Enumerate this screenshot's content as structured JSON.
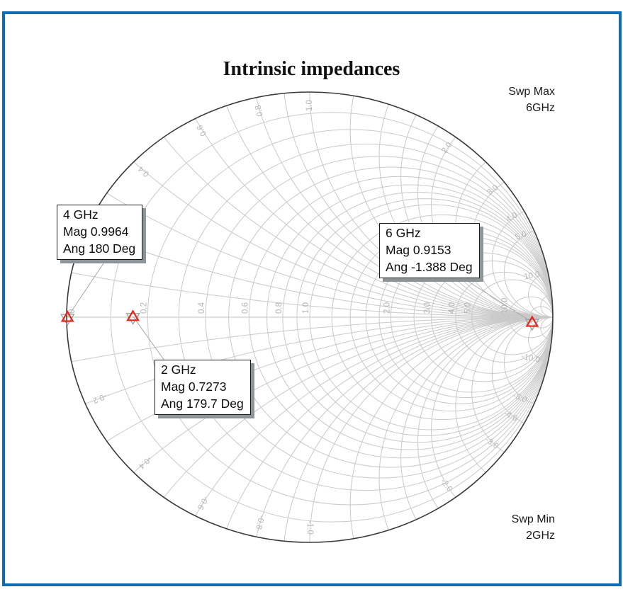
{
  "frame": {
    "border_color": "#0f6cb5"
  },
  "title": "Intrinsic impedances",
  "sweep": {
    "max_label": "Swp Max",
    "max_value": "6GHz",
    "min_label": "Swp Min",
    "min_value": "2GHz"
  },
  "chart_data": {
    "type": "smith",
    "title": "Intrinsic impedances",
    "sweep_min": "2GHz",
    "sweep_max": "6GHz",
    "points": [
      {
        "freq": "2 GHz",
        "mag": 0.7273,
        "ang_deg": 179.7,
        "label_lines": [
          "2 GHz",
          "Mag 0.7273",
          "Ang 179.7 Deg"
        ]
      },
      {
        "freq": "4 GHz",
        "mag": 0.9964,
        "ang_deg": 180,
        "label_lines": [
          "4 GHz",
          "Mag 0.9964",
          "Ang 180 Deg"
        ]
      },
      {
        "freq": "6 GHz",
        "mag": 0.9153,
        "ang_deg": -1.388,
        "label_lines": [
          "6 GHz",
          "Mag 0.9153",
          "Ang -1.388 Deg"
        ]
      }
    ],
    "grid": {
      "zero_label": "0",
      "resistance_labeled": [
        0.2,
        0.4,
        0.6,
        0.8,
        1.0,
        2.0,
        3.0,
        4.0,
        5.0,
        10.0
      ],
      "resistance_unlabeled": [
        0.1,
        0.3,
        0.5,
        0.7,
        0.9,
        1.2,
        1.4,
        1.6,
        1.8,
        2.5,
        20
      ],
      "reactance_labeled": [
        0.2,
        0.4,
        0.6,
        0.8,
        1.0,
        2.0,
        3.0,
        4.0,
        5.0,
        10.0
      ],
      "reactance_unlabeled": [
        0.1,
        0.3,
        0.5,
        0.7,
        0.9,
        1.2,
        1.4,
        1.6,
        1.8,
        2.5,
        20
      ]
    },
    "colors": {
      "marker": "#e3261d",
      "marker_shadow": "#9aa0a3",
      "grid": "#c9c9c9",
      "grid_label": "#b5b5b5",
      "rim": "#3a3a3a",
      "leader_line": "#a8a8a8"
    }
  }
}
